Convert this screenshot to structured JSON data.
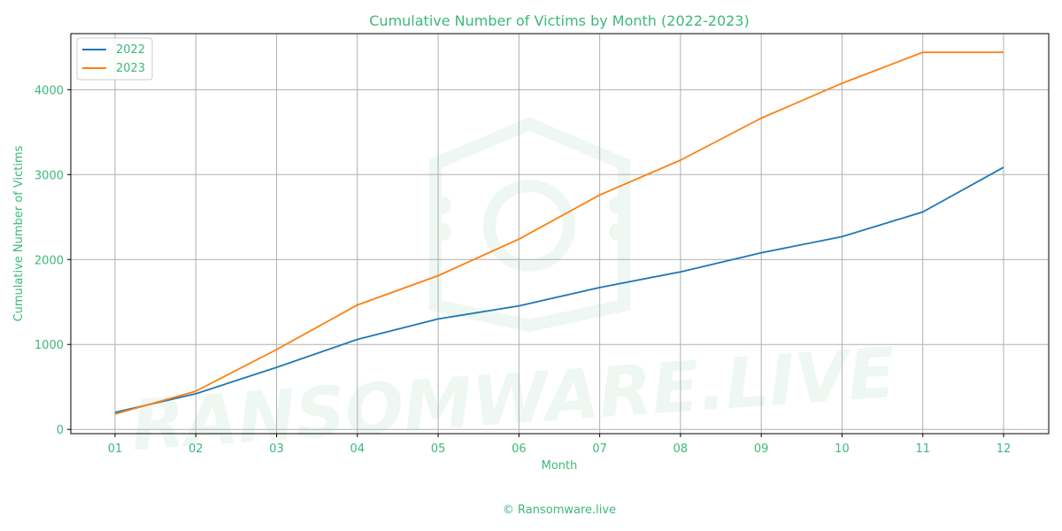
{
  "chart_data": {
    "type": "line",
    "title": "Cumulative Number of Victims by Month (2022-2023)",
    "xlabel": "Month",
    "ylabel": "Cumulative Number of Victims",
    "categories": [
      "01",
      "02",
      "03",
      "04",
      "05",
      "06",
      "07",
      "08",
      "09",
      "10",
      "11",
      "12"
    ],
    "ylim": [
      -50,
      4660
    ],
    "yticks": [
      0,
      1000,
      2000,
      3000,
      4000
    ],
    "grid": true,
    "legend_position": "top-left",
    "series": [
      {
        "name": "2022",
        "color": "#1f77b4",
        "values": [
          200,
          420,
          730,
          1060,
          1300,
          1455,
          1670,
          1855,
          2080,
          2270,
          2560,
          3085
        ]
      },
      {
        "name": "2023",
        "color": "#ff7f0e",
        "values": [
          180,
          450,
          940,
          1465,
          1810,
          2240,
          2760,
          3170,
          3665,
          4075,
          4440,
          4440
        ]
      }
    ]
  },
  "colors": {
    "text": "#3cb97b",
    "grid": "#b0b0b0",
    "watermark": "#eef7f2"
  },
  "watermark_text": "RANSOMWARE.LIVE",
  "footer": "© Ransomware.live"
}
